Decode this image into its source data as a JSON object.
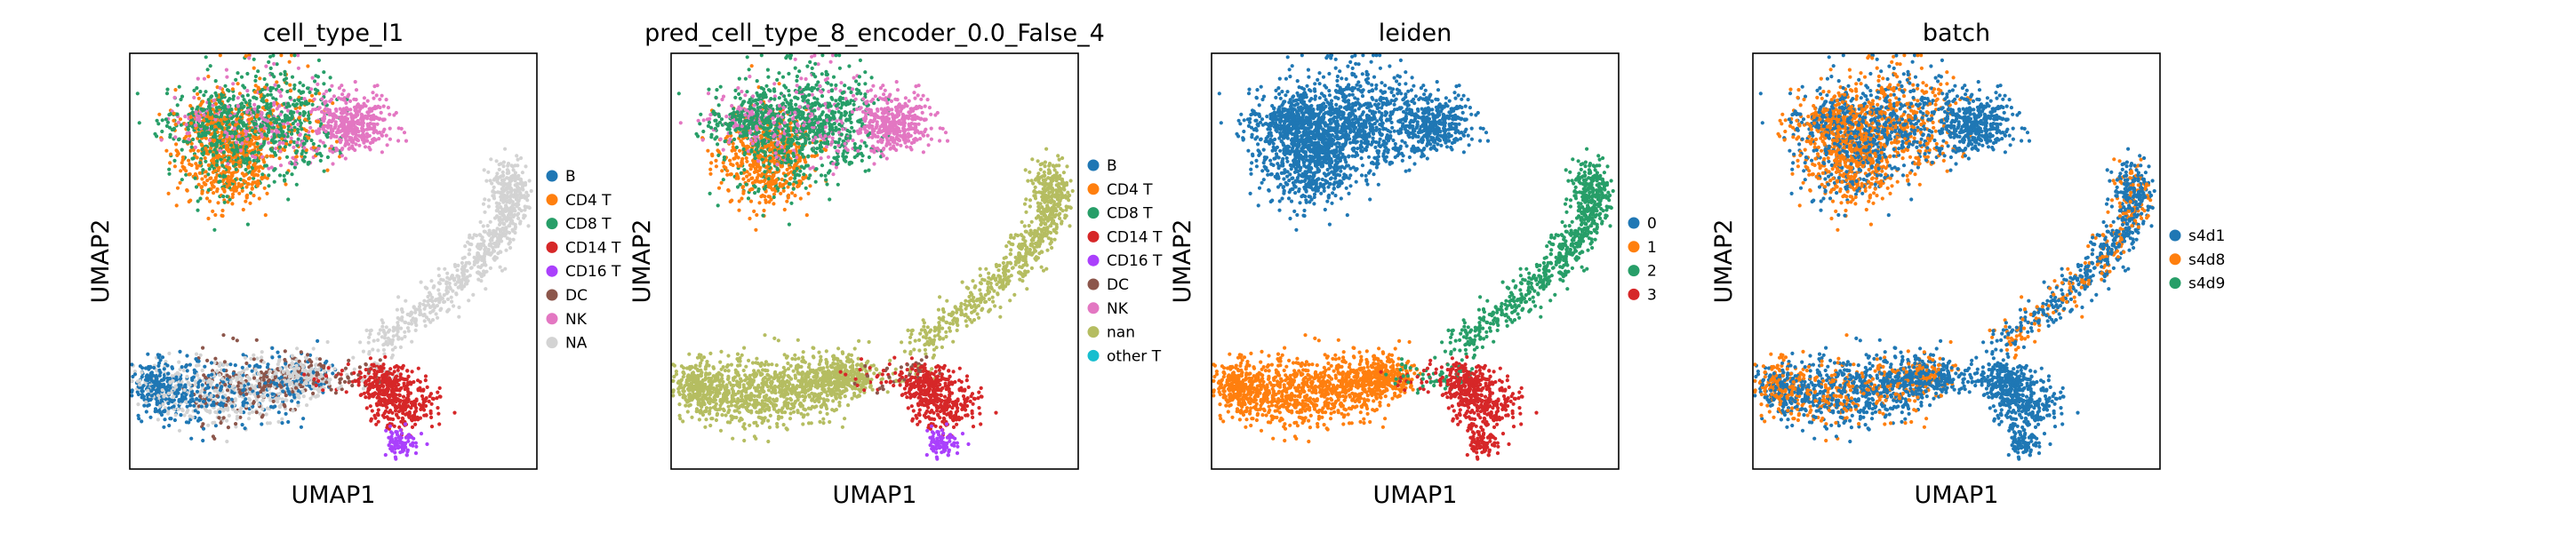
{
  "chart_data": [
    {
      "type": "scatter",
      "title": "cell_type_l1",
      "xlabel": "UMAP1",
      "ylabel": "UMAP2",
      "legend": "right",
      "grid": false,
      "categories": [
        "B",
        "CD4 T",
        "CD8 T",
        "CD14 T",
        "CD16 T",
        "DC",
        "NK",
        "NA"
      ],
      "colors": [
        "#1f77b4",
        "#ff7f0e",
        "#279e68",
        "#d62728",
        "#aa40fc",
        "#8c564b",
        "#e377c2",
        "#d3d3d3"
      ]
    },
    {
      "type": "scatter",
      "title": "pred_cell_type_8_encoder_0.0_False_4",
      "xlabel": "UMAP1",
      "ylabel": "UMAP2",
      "legend": "right",
      "grid": false,
      "categories": [
        "B",
        "CD4 T",
        "CD8 T",
        "CD14 T",
        "CD16 T",
        "DC",
        "NK",
        "nan",
        "other T"
      ],
      "colors": [
        "#1f77b4",
        "#ff7f0e",
        "#279e68",
        "#d62728",
        "#aa40fc",
        "#8c564b",
        "#e377c2",
        "#b5bd61",
        "#17becf"
      ]
    },
    {
      "type": "scatter",
      "title": "leiden",
      "xlabel": "UMAP1",
      "ylabel": "UMAP2",
      "legend": "right",
      "grid": false,
      "categories": [
        "0",
        "1",
        "2",
        "3"
      ],
      "colors": [
        "#1f77b4",
        "#ff7f0e",
        "#279e68",
        "#d62728"
      ]
    },
    {
      "type": "scatter",
      "title": "batch",
      "xlabel": "UMAP1",
      "ylabel": "UMAP2",
      "legend": "right",
      "grid": false,
      "categories": [
        "s4d1",
        "s4d8",
        "s4d9"
      ],
      "colors": [
        "#1f77b4",
        "#ff7f0e",
        "#279e68"
      ]
    }
  ]
}
